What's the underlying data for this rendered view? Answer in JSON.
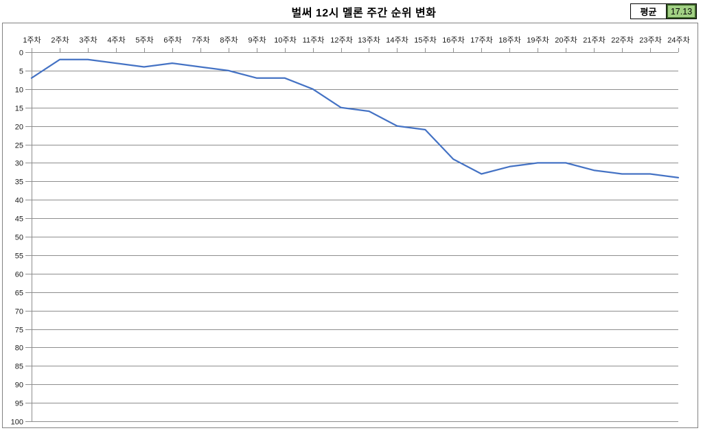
{
  "title": "벌써 12시 멜론 주간 순위 변화",
  "average": {
    "label": "평균",
    "value": "17.13"
  },
  "colors": {
    "line": "#4472C4",
    "grid": "#8C8C8C",
    "axis": "#8C8C8C",
    "frame_border": "#808080",
    "avg_fill": "#A2D184",
    "avg_value_border": "#3A5F28",
    "label_text": "#1A1A1A"
  },
  "chart_data": {
    "type": "line",
    "title": "벌써 12시 멜론 주간 순위 변화",
    "categories": [
      "1주차",
      "2주차",
      "3주차",
      "4주차",
      "5주차",
      "6주차",
      "7주차",
      "8주차",
      "9주차",
      "10주차",
      "11주차",
      "12주차",
      "13주차",
      "14주차",
      "15주차",
      "16주차",
      "17주차",
      "18주차",
      "19주차",
      "20주차",
      "21주차",
      "22주차",
      "23주차",
      "24주차"
    ],
    "values": [
      7,
      2,
      2,
      3,
      4,
      3,
      4,
      5,
      7,
      7,
      10,
      15,
      16,
      20,
      21,
      29,
      33,
      31,
      30,
      30,
      32,
      33,
      33,
      34
    ],
    "average_shown": 17.13,
    "xlabel": "",
    "ylabel": "",
    "x_axis_position": "top",
    "y_axis": {
      "min": 0,
      "max": 100,
      "step": 5,
      "reversed": true,
      "tick_labels": [
        "0",
        "5",
        "10",
        "15",
        "20",
        "25",
        "30",
        "35",
        "40",
        "45",
        "50",
        "55",
        "60",
        "65",
        "70",
        "75",
        "80",
        "85",
        "90",
        "95",
        "100"
      ]
    },
    "grid": true,
    "legend": "none"
  }
}
